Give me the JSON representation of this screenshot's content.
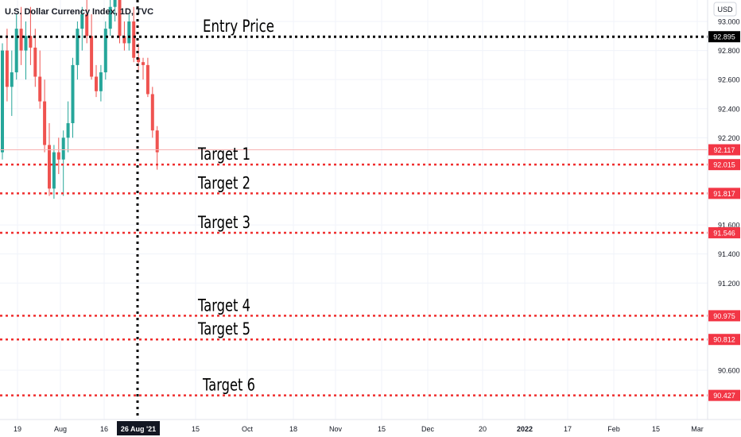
{
  "header": {
    "title": "U.S. Dollar Currency Index, 1D, TVC"
  },
  "currency_button": {
    "label": "USD"
  },
  "colors": {
    "up": "#26a69a",
    "down": "#ef5350",
    "target_line": "#ef2f2f",
    "entry_line": "#000000",
    "grid": "#f0f3fa",
    "axis_text": "#131722",
    "price_marker": "#f23645"
  },
  "chart_data": {
    "type": "candlestick",
    "title": "U.S. Dollar Currency Index, 1D, TVC",
    "y_axis": {
      "range": [
        90.35,
        93.15
      ],
      "ticks": [
        "93.000",
        "92.800",
        "92.600",
        "92.400",
        "92.200",
        "91.600",
        "91.400",
        "91.200",
        "90.600"
      ]
    },
    "x_axis": {
      "ticks": [
        "19",
        "Aug",
        "16",
        "26 Aug '21",
        "15",
        "Oct",
        "18",
        "Nov",
        "15",
        "Dec",
        "20",
        "2022",
        "17",
        "Feb",
        "15",
        "Mar"
      ],
      "highlighted_tick": "26 Aug '21"
    },
    "last_price": "92.117",
    "candles": [
      {
        "o": 92.1,
        "h": 92.85,
        "l": 92.05,
        "c": 92.8
      },
      {
        "o": 92.8,
        "h": 92.95,
        "l": 92.45,
        "c": 92.55
      },
      {
        "o": 92.55,
        "h": 92.8,
        "l": 92.35,
        "c": 92.65
      },
      {
        "o": 92.65,
        "h": 93.05,
        "l": 92.6,
        "c": 92.95
      },
      {
        "o": 92.95,
        "h": 93.1,
        "l": 92.7,
        "c": 92.8
      },
      {
        "o": 92.8,
        "h": 93.0,
        "l": 92.6,
        "c": 92.9
      },
      {
        "o": 92.9,
        "h": 93.1,
        "l": 92.7,
        "c": 92.82
      },
      {
        "o": 92.82,
        "h": 92.95,
        "l": 92.55,
        "c": 92.62
      },
      {
        "o": 92.62,
        "h": 92.8,
        "l": 92.4,
        "c": 92.45
      },
      {
        "o": 92.45,
        "h": 92.6,
        "l": 92.1,
        "c": 92.15
      },
      {
        "o": 92.15,
        "h": 92.3,
        "l": 91.8,
        "c": 91.85
      },
      {
        "o": 91.85,
        "h": 92.15,
        "l": 91.78,
        "c": 92.1
      },
      {
        "o": 92.1,
        "h": 92.2,
        "l": 91.95,
        "c": 92.05
      },
      {
        "o": 92.05,
        "h": 92.25,
        "l": 91.8,
        "c": 92.2
      },
      {
        "o": 92.2,
        "h": 92.45,
        "l": 92.1,
        "c": 92.3
      },
      {
        "o": 92.3,
        "h": 92.75,
        "l": 92.2,
        "c": 92.7
      },
      {
        "o": 92.7,
        "h": 93.0,
        "l": 92.6,
        "c": 92.95
      },
      {
        "o": 92.95,
        "h": 93.1,
        "l": 92.8,
        "c": 93.05
      },
      {
        "o": 93.05,
        "h": 93.15,
        "l": 92.85,
        "c": 92.9
      },
      {
        "o": 92.9,
        "h": 93.05,
        "l": 92.6,
        "c": 92.62
      },
      {
        "o": 92.62,
        "h": 92.7,
        "l": 92.48,
        "c": 92.52
      },
      {
        "o": 92.52,
        "h": 92.7,
        "l": 92.45,
        "c": 92.65
      },
      {
        "o": 92.65,
        "h": 93.0,
        "l": 92.6,
        "c": 92.95
      },
      {
        "o": 92.95,
        "h": 93.15,
        "l": 92.9,
        "c": 93.1
      },
      {
        "o": 93.1,
        "h": 93.2,
        "l": 93.0,
        "c": 93.15
      },
      {
        "o": 93.15,
        "h": 93.2,
        "l": 92.85,
        "c": 92.9
      },
      {
        "o": 92.9,
        "h": 93.0,
        "l": 92.8,
        "c": 92.85
      },
      {
        "o": 92.85,
        "h": 93.05,
        "l": 92.8,
        "c": 93.0
      },
      {
        "o": 93.0,
        "h": 93.1,
        "l": 92.72,
        "c": 92.75
      },
      {
        "o": 92.75,
        "h": 92.85,
        "l": 92.65,
        "c": 92.72
      },
      {
        "o": 92.72,
        "h": 92.75,
        "l": 92.6,
        "c": 92.7
      },
      {
        "o": 92.7,
        "h": 92.75,
        "l": 92.48,
        "c": 92.5
      },
      {
        "o": 92.5,
        "h": 92.55,
        "l": 92.2,
        "c": 92.25
      },
      {
        "o": 92.25,
        "h": 92.28,
        "l": 91.98,
        "c": 92.1
      }
    ],
    "entry": {
      "label": "Entry Price",
      "value": "92.895"
    },
    "targets": [
      {
        "label": "Target 1",
        "value": "92.015"
      },
      {
        "label": "Target 2",
        "value": "91.817"
      },
      {
        "label": "Target 3",
        "value": "91.546"
      },
      {
        "label": "Target 4",
        "value": "90.975"
      },
      {
        "label": "Target 5",
        "value": "90.812"
      },
      {
        "label": "Target 6",
        "value": "90.427"
      }
    ]
  }
}
